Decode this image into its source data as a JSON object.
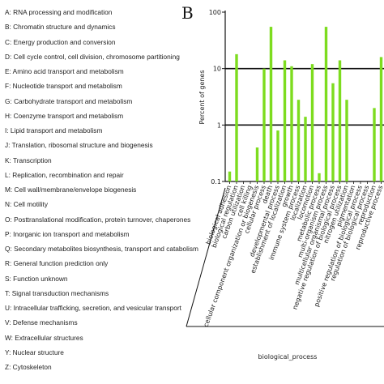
{
  "legend": [
    "A: RNA processing and modification",
    "B: Chromatin structure and dynamics",
    "C: Energy production and conversion",
    "D: Cell cycle control, cell division, chromosome partitioning",
    "E: Amino acid transport and metabolism",
    "F: Nucleotide transport and metabolism",
    "G: Carbohydrate transport and metabolism",
    "H: Coenzyme transport and metabolism",
    "I: Lipid transport and metabolism",
    "J: Translation, ribosomal structure and biogenesis",
    "K: Transcription",
    "L: Replication, recombination and repair",
    "M: Cell wall/membrane/envelope biogenesis",
    "N: Cell motility",
    "O: Posttranslational modification, protein turnover, chaperones",
    "P: Inorganic ion transport and metabolism",
    "Q: Secondary metabolites biosynthesis, transport and catabolism",
    "R: General function prediction only",
    "S: Function unknown",
    "T: Signal transduction mechanisms",
    "U: Intracellular trafficking, secretion, and vesicular transport",
    "V: Defense mechanisms",
    "W: Extracellular structures",
    "Y: Nuclear structure",
    "Z: Cytoskeleton"
  ],
  "panel_label": "B",
  "colors": {
    "bar": "#7ddc1f",
    "axis": "#111111",
    "grid": "#111111"
  },
  "chart_data": {
    "type": "bar",
    "ylabel": "Percent of genes",
    "xlabel": "biological_process",
    "y_scale": "log",
    "ylim": [
      0.1,
      100
    ],
    "yticks": [
      "0.1",
      "1",
      "10",
      "100"
    ],
    "categories": [
      "biological adhesion",
      "biological regulation",
      "carbon utilization",
      "cell killing",
      "cellular component organization or biogenesis",
      "cellular process",
      "death",
      "developmental process",
      "establishment of localization",
      "growth",
      "immune system process",
      "localization",
      "locomotion",
      "metabolic process",
      "multi-organism process",
      "multicellular organismal process",
      "negative regulation of biological process",
      "nitrogen utilization",
      "pigmentation",
      "positive regulation of biological process",
      "regulation of biological process",
      "reproduction",
      "reproductive process"
    ],
    "values": [
      0.15,
      18,
      null,
      null,
      0.4,
      10,
      55,
      0.8,
      14,
      11,
      2.8,
      1.4,
      12,
      0.14,
      55,
      5.5,
      14,
      2.8,
      null,
      null,
      null,
      2.0,
      16
    ]
  }
}
